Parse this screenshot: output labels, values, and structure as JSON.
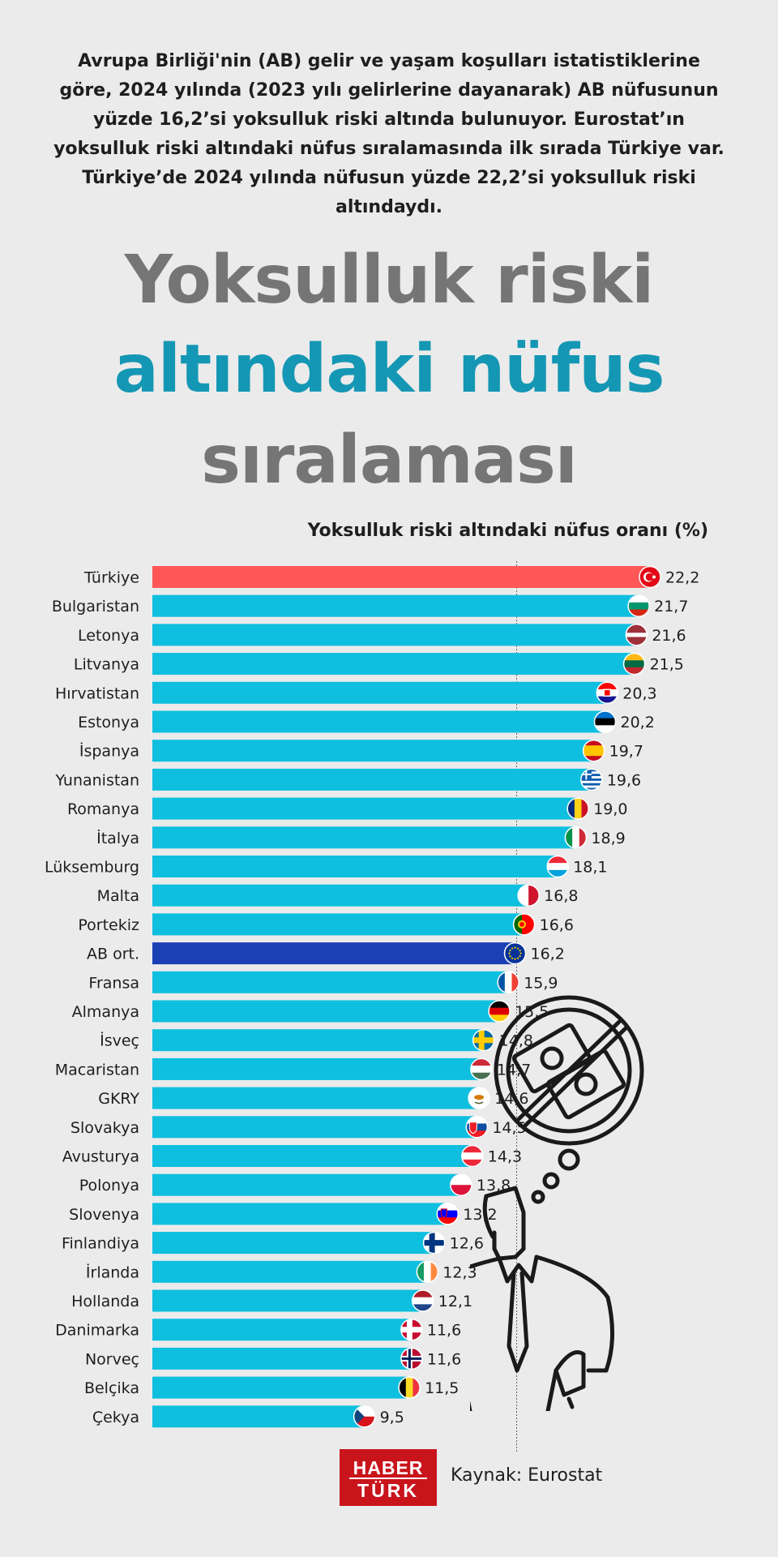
{
  "intro_text": "Avrupa Birliği'nin (AB) gelir ve yaşam koşulları istatistiklerine göre, 2024 yılında (2023 yılı gelirlerine dayanarak) AB nüfusunun yüzde 16,2’si yoksulluk riski altında bulunuyor. Eurostat’ın yoksulluk riski altındaki nüfus sıralamasında ilk sırada Türkiye var. Türkiye’de 2024 yılında nüfusun yüzde 22,2’si yoksulluk riski altındaydı.",
  "title": {
    "line1": "Yoksulluk riski",
    "line2": "altındaki nüfus",
    "line3": "sıralaması"
  },
  "colors": {
    "default_bar": "#0fbfdf",
    "turkiye_bar": "#ff5757",
    "eu_average_bar": "#1b3fb4",
    "title_gray": "#757575",
    "title_teal": "#1497b4"
  },
  "chart_data": {
    "type": "bar",
    "orientation": "horizontal",
    "title": "Yoksulluk riski altındaki nüfus oranı (%)",
    "xlim": [
      0,
      22.2
    ],
    "reference_line": 16.2,
    "categories": [
      "Türkiye",
      "Bulgaristan",
      "Letonya",
      "Litvanya",
      "Hırvatistan",
      "Estonya",
      "İspanya",
      "Yunanistan",
      "Romanya",
      "İtalya",
      "Lüksemburg",
      "Malta",
      "Portekiz",
      "AB ort.",
      "Fransa",
      "Almanya",
      "İsveç",
      "Macaristan",
      "GKRY",
      "Slovakya",
      "Avusturya",
      "Polonya",
      "Slovenya",
      "Finlandiya",
      "İrlanda",
      "Hollanda",
      "Danimarka",
      "Norveç",
      "Belçika",
      "Çekya"
    ],
    "values": [
      22.2,
      21.7,
      21.6,
      21.5,
      20.3,
      20.2,
      19.7,
      19.6,
      19.0,
      18.9,
      18.1,
      16.8,
      16.6,
      16.2,
      15.9,
      15.5,
      14.8,
      14.7,
      14.6,
      14.5,
      14.3,
      13.8,
      13.2,
      12.6,
      12.3,
      12.1,
      11.6,
      11.6,
      11.5,
      9.5
    ],
    "value_labels": [
      "22,2",
      "21,7",
      "21,6",
      "21,5",
      "20,3",
      "20,2",
      "19,7",
      "19,6",
      "19,0",
      "18,9",
      "18,1",
      "16,8",
      "16,6",
      "16,2",
      "15,9",
      "15,5",
      "14,8",
      "14,7",
      "14,6",
      "14,5",
      "14,3",
      "13,8",
      "13,2",
      "12,6",
      "12,3",
      "12,1",
      "11,6",
      "11,6",
      "11,5",
      "9,5"
    ],
    "flag_icons": [
      "turkey-flag",
      "bulgaria-flag",
      "latvia-flag",
      "lithuania-flag",
      "croatia-flag",
      "estonia-flag",
      "spain-flag",
      "greece-flag",
      "romania-flag",
      "italy-flag",
      "luxembourg-flag",
      "malta-flag",
      "portugal-flag",
      "eu-flag",
      "france-flag",
      "germany-flag",
      "sweden-flag",
      "hungary-flag",
      "cyprus-flag",
      "slovakia-flag",
      "austria-flag",
      "poland-flag",
      "slovenia-flag",
      "finland-flag",
      "ireland-flag",
      "netherlands-flag",
      "denmark-flag",
      "norway-flag",
      "belgium-flag",
      "czechia-flag"
    ]
  },
  "footer": {
    "logo_line1": "HABER",
    "logo_line2": "TÜRK",
    "source": "Kaynak: Eurostat"
  },
  "illustration_icon": "poor-man-empty-pockets-no-money-thought-icon"
}
